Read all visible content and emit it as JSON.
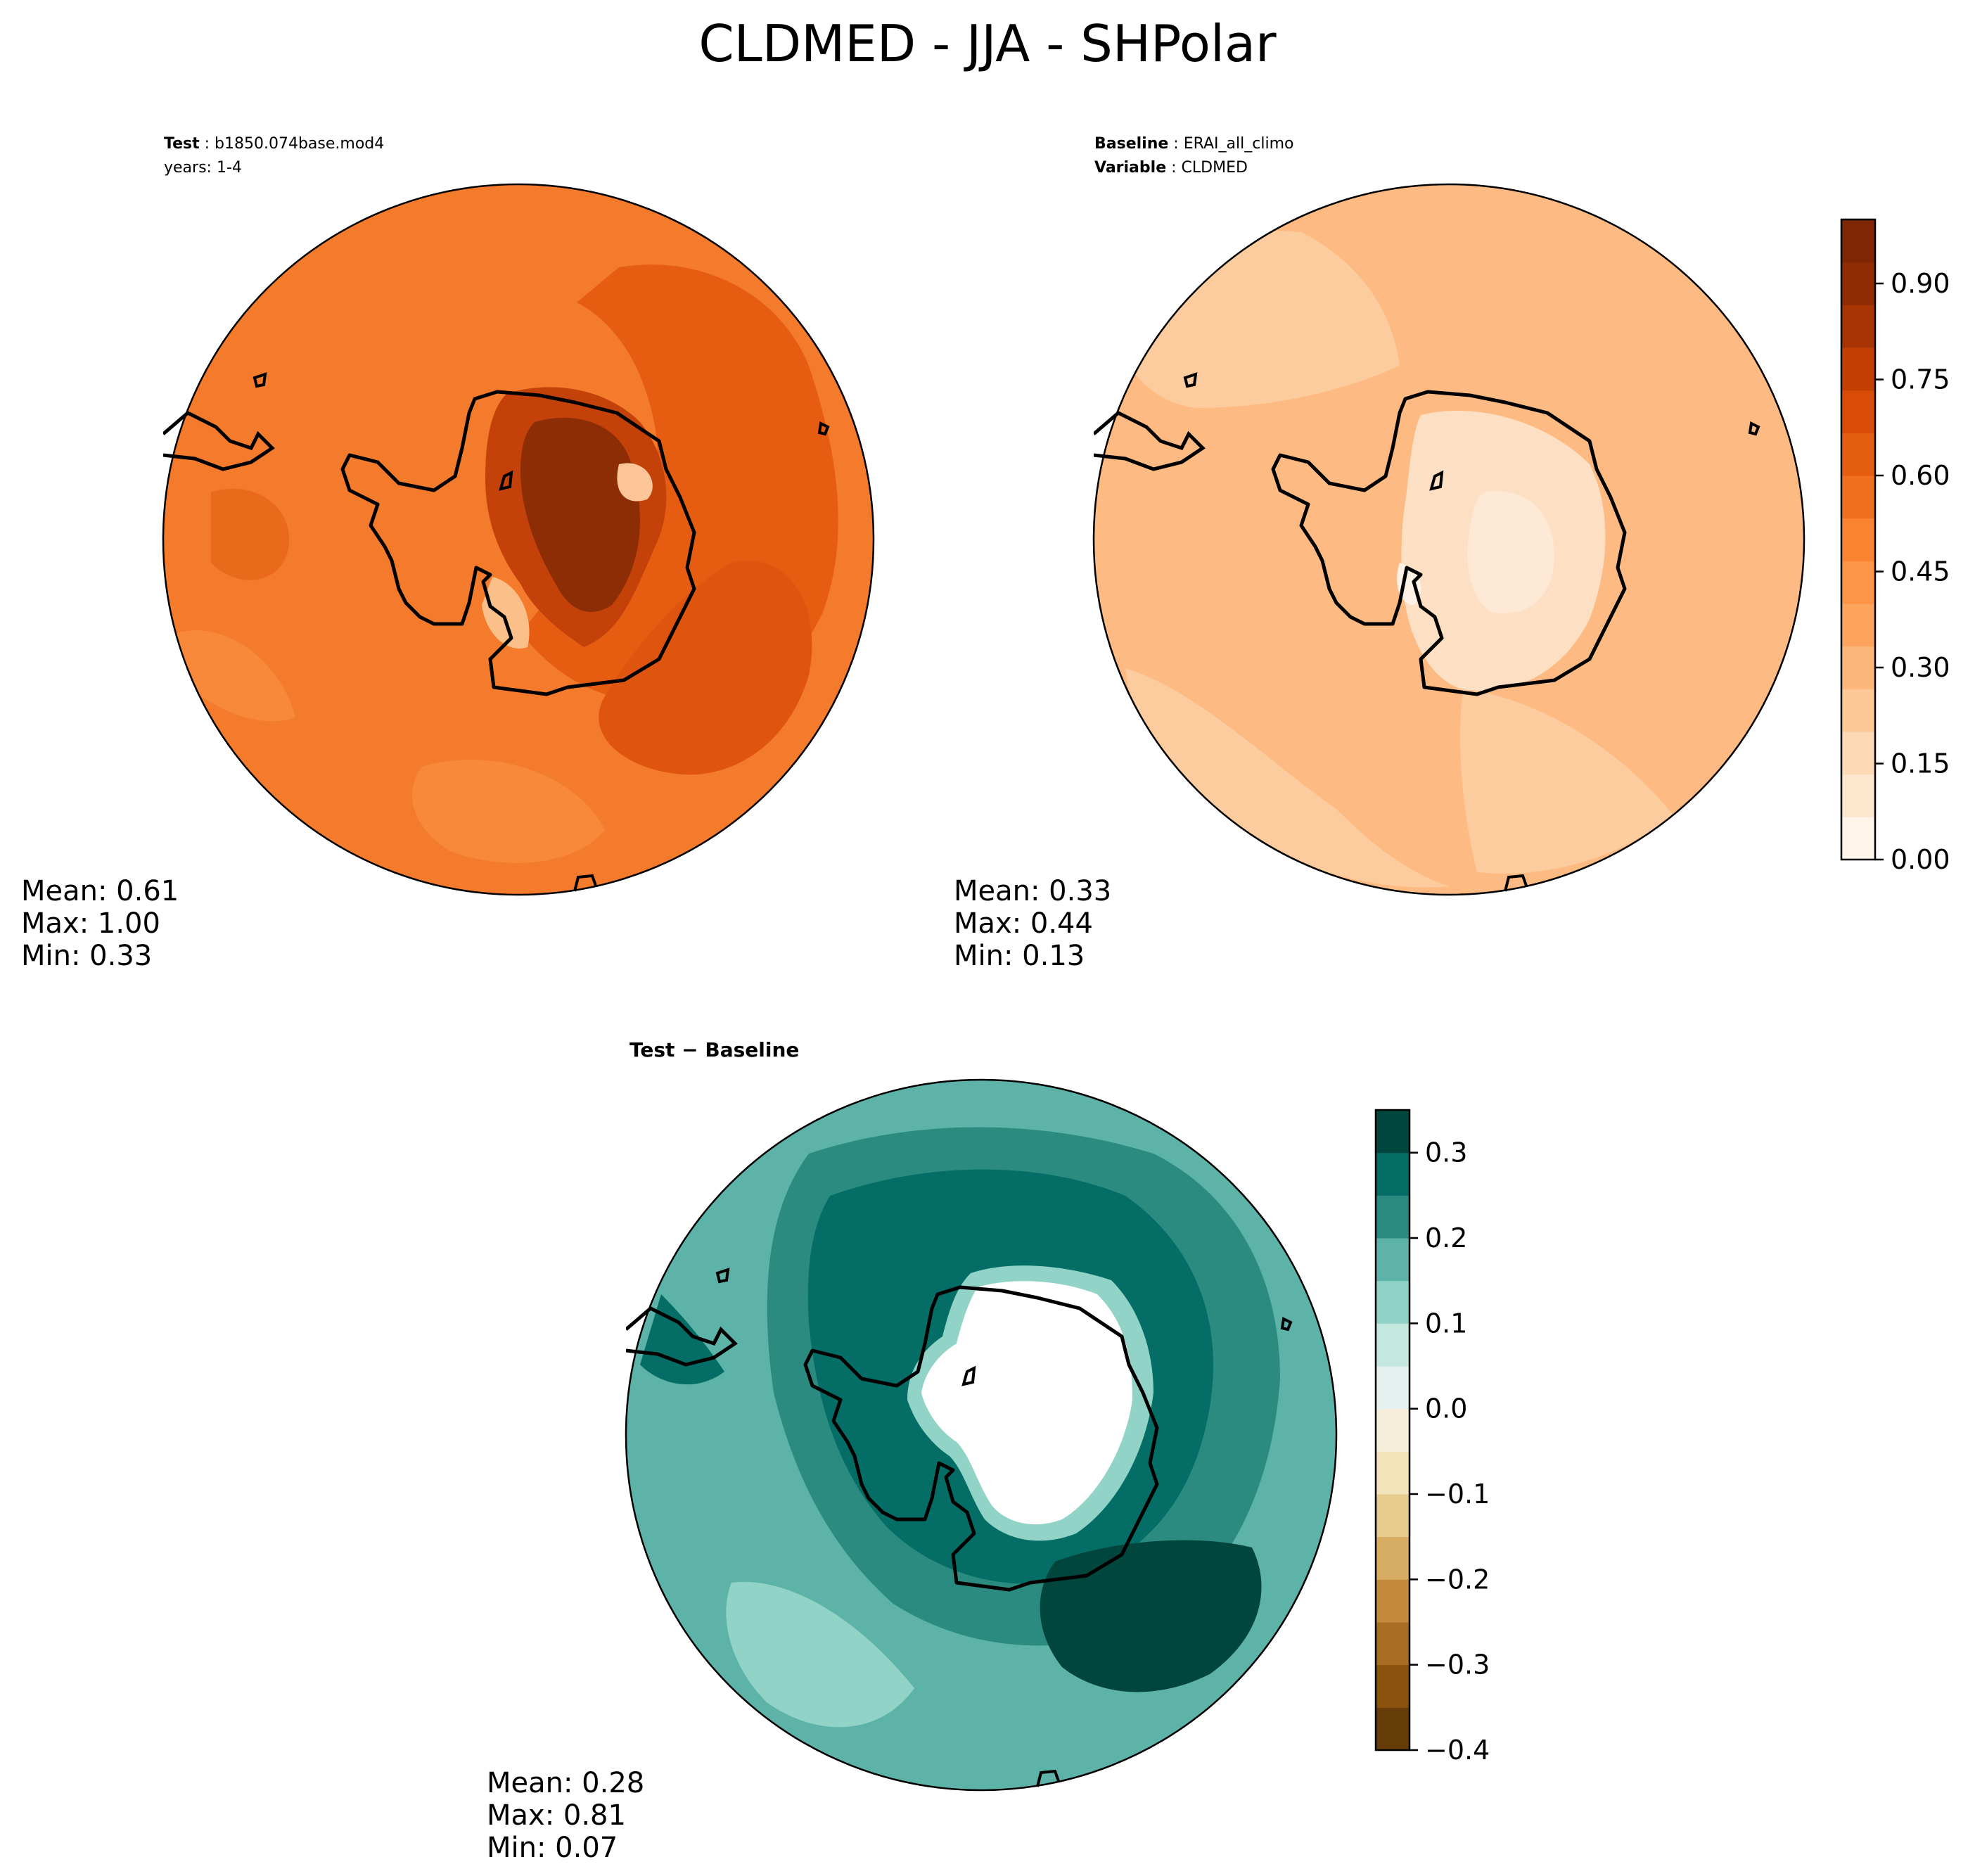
{
  "title": "CLDMED - JJA - SHPolar",
  "panels": {
    "test": {
      "header_label": "Test",
      "header_value": "b1850.074base.mod4",
      "header_line2": "years: 1-4",
      "stats": {
        "mean": "Mean:  0.61",
        "max": "Max:  1.00",
        "min": "Min:  0.33"
      }
    },
    "baseline": {
      "header_label": "Baseline",
      "header_value": "ERAI_all_climo",
      "header_label2": "Variable",
      "header_value2": "CLDMED",
      "stats": {
        "mean": "Mean:  0.33",
        "max": "Max:  0.44",
        "min": "Min:  0.13"
      }
    },
    "diff": {
      "header_bold": "Test − Baseline",
      "stats": {
        "mean": "Mean:  0.28",
        "max": "Max:  0.81",
        "min": "Min:  0.07"
      }
    }
  },
  "colorbar_top": {
    "ticks": [
      "0.00",
      "0.15",
      "0.30",
      "0.45",
      "0.60",
      "0.75",
      "0.90"
    ],
    "min": 0.0,
    "max": 1.0,
    "colors": [
      "#fff5eb",
      "#fee6ce",
      "#fdd9b5",
      "#fdc996",
      "#fdb77a",
      "#fda45f",
      "#fd9446",
      "#f98331",
      "#f0701f",
      "#e55d10",
      "#d84c07",
      "#c23e03",
      "#a83403",
      "#8f2c04",
      "#7f2704"
    ]
  },
  "colorbar_diff": {
    "ticks": [
      "0.3",
      "0.2",
      "0.1",
      "0.0",
      "−0.1",
      "−0.2",
      "−0.3",
      "−0.4"
    ],
    "min": -0.4,
    "max": 0.35,
    "colors": [
      "#663d08",
      "#8a520c",
      "#a96d24",
      "#c28a3a",
      "#d6ad63",
      "#e6cc8f",
      "#f2e3b8",
      "#f6eedb",
      "#e4f1ee",
      "#c4e8e0",
      "#91d3c7",
      "#5db3a8",
      "#2b8b80",
      "#046e66",
      "#01463c"
    ]
  }
}
